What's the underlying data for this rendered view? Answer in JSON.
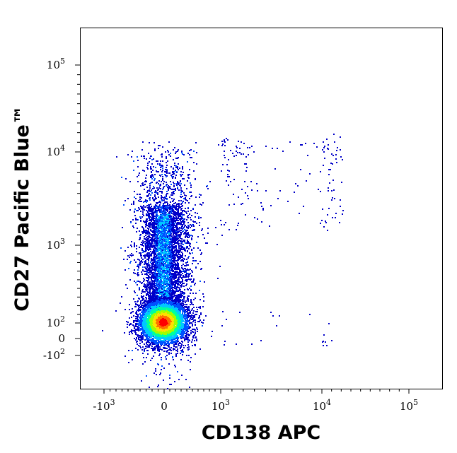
{
  "chart_data": {
    "type": "scatter",
    "subtype": "flow-cytometry-density-plot",
    "title": "",
    "xlabel": "CD138 APC",
    "ylabel": "CD27 Pacific Blue™",
    "x_scale": "biexponential",
    "y_scale": "biexponential",
    "x_ticks": [
      {
        "value": -1000,
        "label": "-10",
        "exp": "3"
      },
      {
        "value": 0,
        "label": "0",
        "exp": ""
      },
      {
        "value": 1000,
        "label": "10",
        "exp": "3"
      },
      {
        "value": 10000,
        "label": "10",
        "exp": "4"
      },
      {
        "value": 100000,
        "label": "10",
        "exp": "5"
      }
    ],
    "y_ticks": [
      {
        "value": -100,
        "label": "-10",
        "exp": "2"
      },
      {
        "value": 0,
        "label": "0",
        "exp": ""
      },
      {
        "value": 100,
        "label": "10",
        "exp": "2"
      },
      {
        "value": 1000,
        "label": "10",
        "exp": "3"
      },
      {
        "value": 10000,
        "label": "10",
        "exp": "4"
      },
      {
        "value": 100000,
        "label": "10",
        "exp": "5"
      }
    ],
    "xlim": [
      -3000,
      250000
    ],
    "ylim": [
      -400,
      250000
    ],
    "grid": false,
    "colormap": [
      "#0000c8",
      "#0050ff",
      "#00c8ff",
      "#00ffa0",
      "#a0ff00",
      "#ffe000",
      "#ff7000",
      "#ff0000"
    ],
    "populations": [
      {
        "name": "",
        "x_center": 0,
        "y_center": 100,
        "x_spread": 180,
        "y_spread": 30,
        "density": "highest"
      },
      {
        "name": "",
        "x_center": 0,
        "y_center": 1000,
        "x_spread": 200,
        "y_range": [
          300,
          3000
        ],
        "density": "medium"
      },
      {
        "name": "",
        "x_range": [
          1000,
          30000
        ],
        "y_range": [
          3000,
          20000
        ],
        "density": "sparse"
      }
    ]
  }
}
